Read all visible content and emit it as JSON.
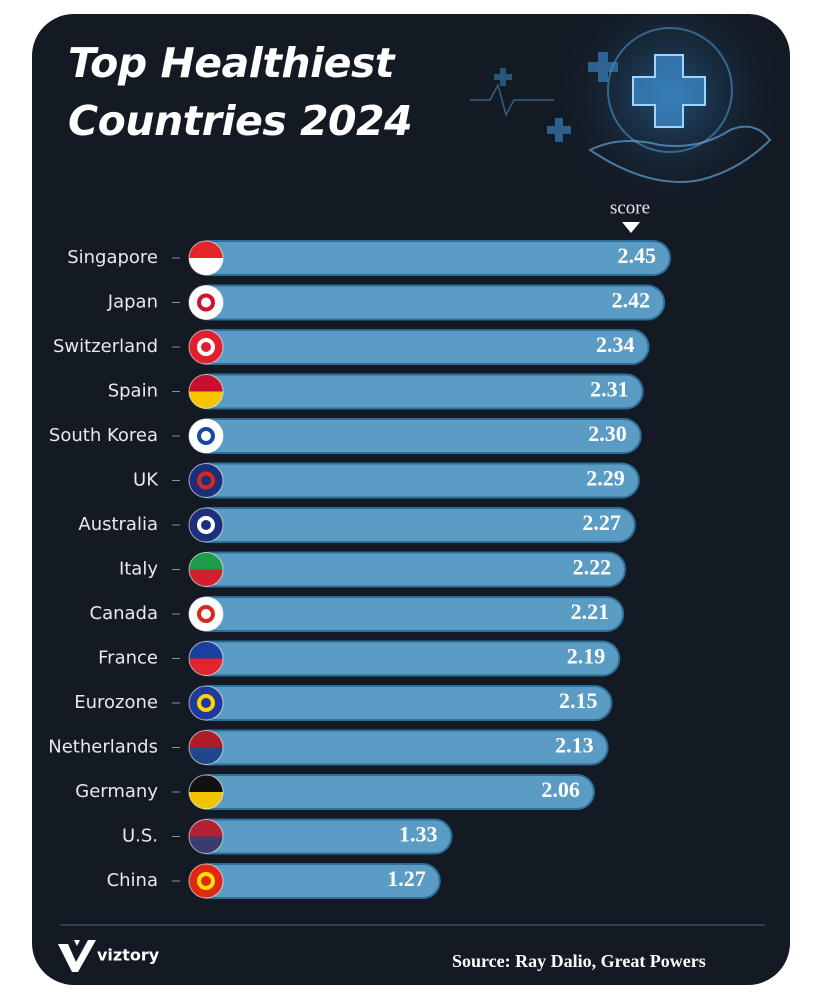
{
  "chart_data": {
    "type": "bar",
    "orientation": "horizontal",
    "title": "Top Healthiest Countries 2024",
    "value_header": "score",
    "categories": [
      "Singapore",
      "Japan",
      "Switzerland",
      "Spain",
      "South Korea",
      "UK",
      "Australia",
      "Italy",
      "Canada",
      "France",
      "Eurozone",
      "Netherlands",
      "Germany",
      "U.S.",
      "China"
    ],
    "values": [
      2.45,
      2.42,
      2.34,
      2.31,
      2.3,
      2.29,
      2.27,
      2.22,
      2.21,
      2.19,
      2.15,
      2.13,
      2.06,
      1.33,
      1.27
    ],
    "value_labels": [
      "2.45",
      "2.42",
      "2.34",
      "2.31",
      "2.30",
      "2.29",
      "2.27",
      "2.22",
      "2.21",
      "2.19",
      "2.15",
      "2.13",
      "2.06",
      "1.33",
      "1.27"
    ],
    "color": "#5b9cc4",
    "brand": "viztory",
    "source": "Source: Ray Dalio, Great Powers"
  }
}
